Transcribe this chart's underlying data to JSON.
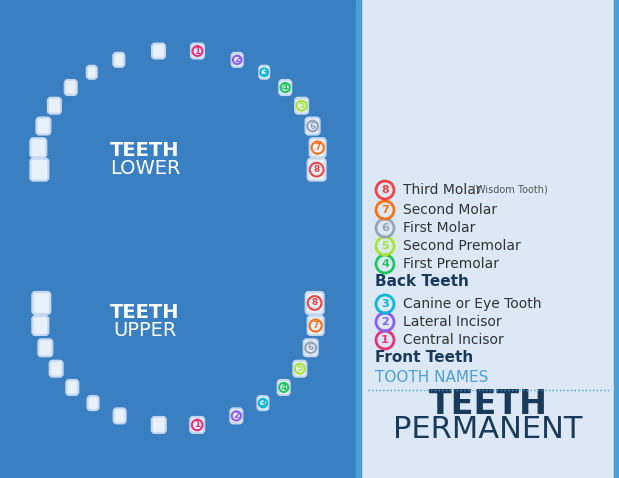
{
  "bg_left": "#3a7fc1",
  "bg_right": "#dce8f5",
  "title_line1": "PERMANENT",
  "title_line2": "TEETH",
  "title_color": "#1a3a5c",
  "tooth_names_label": "TOOTH NAMES",
  "tooth_names_color": "#4a9fd4",
  "section_front": "Front Teeth",
  "section_back": "Back Teeth",
  "section_color": "#1a3a5c",
  "legend": [
    {
      "num": "1",
      "color": "#e8327a",
      "label": "Central Incisor",
      "small": ""
    },
    {
      "num": "2",
      "color": "#8b5cf6",
      "label": "Lateral Incisor",
      "small": ""
    },
    {
      "num": "3",
      "color": "#06b6d4",
      "label": "Canine or Eye Tooth",
      "small": ""
    },
    {
      "num": "4",
      "color": "#22c55e",
      "label": "First Premolar",
      "small": ""
    },
    {
      "num": "5",
      "color": "#a3e635",
      "label": "Second Premolar",
      "small": ""
    },
    {
      "num": "6",
      "color": "#94a3b8",
      "label": "First Molar",
      "small": ""
    },
    {
      "num": "7",
      "color": "#f97316",
      "label": "Second Molar",
      "small": ""
    },
    {
      "num": "8",
      "color": "#ef4444",
      "label": "Third Molar",
      "small": " (Wisdom Tooth)"
    }
  ],
  "upper_label": "UPPER",
  "lower_label": "LOWER",
  "teeth_label": "TEETH",
  "label_color": "#ffffff",
  "tooth_fill": "#e8f0fa",
  "tooth_stroke": "#c5d8f0",
  "tooth_bg": "#3a7fc1"
}
